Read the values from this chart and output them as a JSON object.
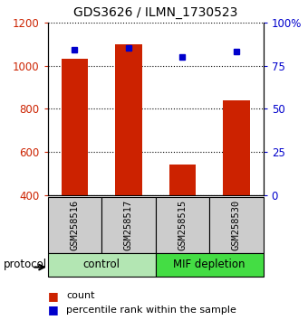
{
  "title": "GDS3626 / ILMN_1730523",
  "samples": [
    "GSM258516",
    "GSM258517",
    "GSM258515",
    "GSM258530"
  ],
  "counts": [
    1030,
    1100,
    540,
    840
  ],
  "percentile_ranks": [
    84,
    85,
    80,
    83
  ],
  "ylim_left": [
    400,
    1200
  ],
  "ylim_right": [
    0,
    100
  ],
  "yticks_left": [
    400,
    600,
    800,
    1000,
    1200
  ],
  "yticks_right": [
    0,
    25,
    50,
    75,
    100
  ],
  "ytick_labels_right": [
    "0",
    "25",
    "50",
    "75",
    "100%"
  ],
  "bar_color": "#cc2200",
  "dot_color": "#0000cc",
  "bar_bottom": 400,
  "groups": [
    {
      "label": "control",
      "indices": [
        0,
        1
      ],
      "color": "#b3e6b3"
    },
    {
      "label": "MIF depletion",
      "indices": [
        2,
        3
      ],
      "color": "#44dd44"
    }
  ],
  "protocol_label": "protocol",
  "sample_box_color": "#cccccc",
  "legend_items": [
    {
      "color": "#cc2200",
      "label": "count"
    },
    {
      "color": "#0000cc",
      "label": "percentile rank within the sample"
    }
  ],
  "bar_width": 0.5
}
